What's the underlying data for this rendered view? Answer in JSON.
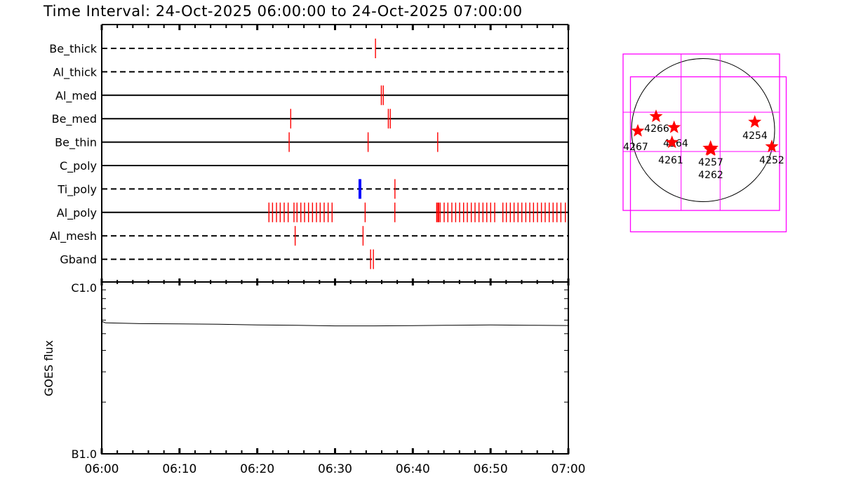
{
  "title": "Time Interval: 24-Oct-2025 06:00:00 to 24-Oct-2025 07:00:00",
  "colors": {
    "obs": "#ff0000",
    "obs_highlight": "#0000ff",
    "fov": "#ff00ff",
    "star": "#ff0000",
    "axis": "#000000"
  },
  "chart_data": [
    {
      "type": "timeline",
      "x_unit": "minutes after 06:00",
      "xlim": [
        0,
        60
      ],
      "x_tick_labels": [
        "06:00",
        "06:10",
        "06:20",
        "06:30",
        "06:40",
        "06:50",
        "07:00"
      ],
      "rows": [
        {
          "name": "Be_thick",
          "line": "dashed",
          "obs": [
            35.2
          ]
        },
        {
          "name": "Al_thick",
          "line": "dashed",
          "obs": []
        },
        {
          "name": "Al_med",
          "line": "solid",
          "obs": [
            35.95,
            36.2
          ]
        },
        {
          "name": "Be_med",
          "line": "solid",
          "obs": [
            24.3,
            36.85,
            37.1
          ]
        },
        {
          "name": "Be_thin",
          "line": "solid",
          "obs": [
            24.1,
            34.25,
            43.2
          ]
        },
        {
          "name": "C_poly",
          "line": "solid",
          "obs": []
        },
        {
          "name": "Ti_poly",
          "line": "dashed",
          "obs": [
            37.7
          ],
          "highlight": [
            33.2
          ]
        },
        {
          "name": "Al_poly",
          "line": "solid",
          "obs": [
            21.5,
            21.96,
            22.47,
            22.95,
            23.46,
            23.97,
            24.72,
            25.11,
            25.6,
            26.08,
            26.59,
            27.1,
            27.61,
            28.09,
            28.6,
            29.11,
            29.62,
            33.87,
            37.69,
            43.07,
            43.22,
            43.34,
            43.52,
            44.03,
            44.51,
            45.02,
            45.51,
            46.02,
            46.53,
            47.01,
            47.52,
            48.0,
            48.51,
            49.02,
            49.51,
            50.01,
            50.53,
            51.58,
            52.03,
            52.54,
            53.02,
            53.53,
            54.02,
            54.53,
            55.04,
            55.52,
            56.03,
            56.54,
            57.02,
            57.54,
            58.04,
            58.53,
            59.04,
            59.61
          ]
        },
        {
          "name": "Al_mesh",
          "line": "dashed",
          "obs": [
            24.87,
            33.6
          ]
        },
        {
          "name": "Gband",
          "line": "dashed",
          "obs": [
            34.57,
            34.93
          ]
        }
      ]
    },
    {
      "type": "line",
      "ylabel": "GOES flux",
      "y_scale": "log",
      "ylim": [
        1e-07,
        1e-06
      ],
      "y_tick_labels": [
        "C1.0",
        "B1.0"
      ],
      "xlim": [
        0,
        60
      ],
      "x_tick_labels": [
        "06:00",
        "06:10",
        "06:20",
        "06:30",
        "06:40",
        "06:50",
        "07:00"
      ],
      "x": [
        0,
        0.5,
        5,
        10,
        15,
        20,
        25,
        30,
        35,
        40,
        45,
        50,
        55,
        60
      ],
      "y": [
        5.9e-07,
        5.78e-07,
        5.72e-07,
        5.7e-07,
        5.68e-07,
        5.62e-07,
        5.6e-07,
        5.55e-07,
        5.55e-07,
        5.57e-07,
        5.6e-07,
        5.62e-07,
        5.6e-07,
        5.58e-07
      ]
    }
  ],
  "sun_map": {
    "regions": [
      {
        "label": "4266"
      },
      {
        "label": "4264"
      },
      {
        "label": "4267"
      },
      {
        "label": "4261"
      },
      {
        "label": "4257"
      },
      {
        "label": "4262"
      },
      {
        "label": "4254"
      },
      {
        "label": "4252"
      }
    ]
  }
}
